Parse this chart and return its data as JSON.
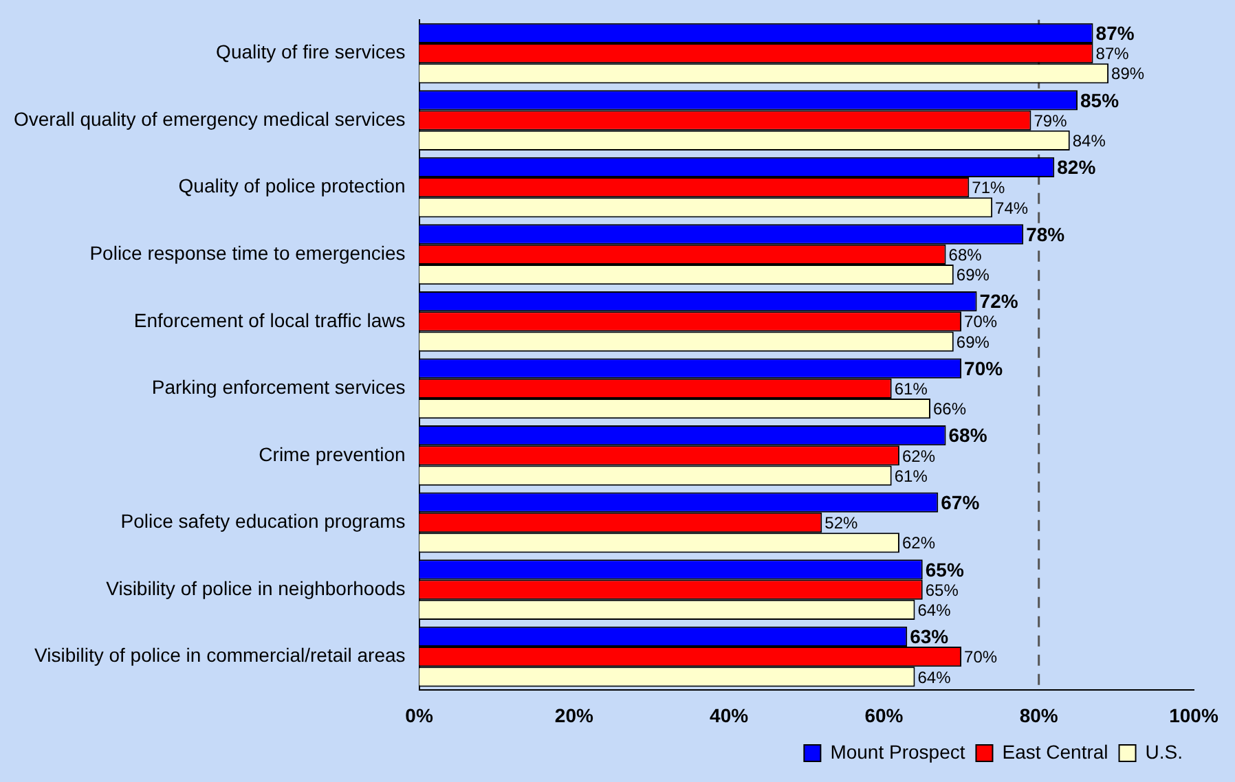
{
  "chart_data": {
    "type": "bar",
    "orientation": "horizontal",
    "categories": [
      "Quality of fire services",
      "Overall quality of emergency medical services",
      "Quality of police protection",
      "Police response time to emergencies",
      "Enforcement of local traffic laws",
      "Parking enforcement services",
      "Crime prevention",
      "Police safety education programs",
      "Visibility of police in neighborhoods",
      "Visibility of police in commercial/retail areas"
    ],
    "series": [
      {
        "name": "Mount Prospect",
        "color": "#0000ff",
        "values": [
          87,
          85,
          82,
          78,
          72,
          70,
          68,
          67,
          65,
          63
        ],
        "value_labels": [
          "87%",
          "85%",
          "82%",
          "78%",
          "72%",
          "70%",
          "68%",
          "67%",
          "65%",
          "63%"
        ]
      },
      {
        "name": "East Central",
        "color": "#ff0000",
        "values": [
          87,
          79,
          71,
          68,
          70,
          61,
          62,
          52,
          65,
          70
        ],
        "value_labels": [
          "87%",
          "79%",
          "71%",
          "68%",
          "70%",
          "61%",
          "62%",
          "52%",
          "65%",
          "70%"
        ]
      },
      {
        "name": "U.S.",
        "color": "#ffffcc",
        "values": [
          89,
          84,
          74,
          69,
          69,
          66,
          61,
          62,
          64,
          64
        ],
        "value_labels": [
          "89%",
          "84%",
          "74%",
          "69%",
          "69%",
          "66%",
          "61%",
          "62%",
          "64%",
          "64%"
        ]
      }
    ],
    "xlim": [
      0,
      100
    ],
    "xticks": [
      {
        "value": 0,
        "label": "0%"
      },
      {
        "value": 20,
        "label": "20%"
      },
      {
        "value": 40,
        "label": "40%"
      },
      {
        "value": 60,
        "label": "60%"
      },
      {
        "value": 80,
        "label": "80%"
      },
      {
        "value": 100,
        "label": "100%"
      }
    ],
    "ref_lines": [
      {
        "axis": "x",
        "value": 80,
        "color": "#555555",
        "line_style": "dashed"
      }
    ],
    "grid": false,
    "legend": "bottom right"
  }
}
